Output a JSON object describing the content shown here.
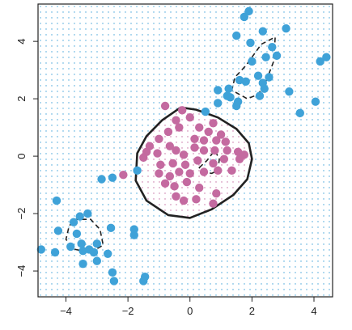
{
  "chart_data": {
    "type": "scatter",
    "title": "",
    "xlabel": "",
    "ylabel": "",
    "xlim": [
      -4.9,
      4.6
    ],
    "ylim": [
      -4.9,
      5.3
    ],
    "x_ticks": [
      -4,
      -2,
      0,
      2,
      4
    ],
    "y_ticks": [
      -4,
      -2,
      0,
      2,
      4
    ],
    "x_tick_labels": [
      "−4",
      "−2",
      "0",
      "2",
      "4"
    ],
    "y_tick_labels": [
      "−4",
      "−2",
      "0",
      "2",
      "4"
    ],
    "grid": "dotted background grid colored by predicted class",
    "colors": {
      "class_a": "#3fa2d8",
      "class_b": "#c46aa0",
      "boundary": "#222222"
    },
    "boundaries": {
      "solid": [
        [
          -0.9,
          1.25
        ],
        [
          -0.3,
          1.7
        ],
        [
          0.2,
          1.62
        ],
        [
          0.9,
          1.35
        ],
        [
          1.5,
          0.95
        ],
        [
          1.9,
          0.45
        ],
        [
          2.0,
          -0.1
        ],
        [
          1.85,
          -0.8
        ],
        [
          1.4,
          -1.35
        ],
        [
          0.7,
          -1.85
        ],
        [
          0.0,
          -2.15
        ],
        [
          -0.7,
          -2.05
        ],
        [
          -1.4,
          -1.55
        ],
        [
          -1.75,
          -0.85
        ],
        [
          -1.7,
          0.1
        ],
        [
          -1.4,
          0.7
        ],
        [
          -0.9,
          1.25
        ]
      ],
      "dashed": [
        [
          [
            2.3,
            3.9
          ],
          [
            2.75,
            4.15
          ],
          [
            2.7,
            3.3
          ],
          [
            2.45,
            2.6
          ],
          [
            2.2,
            2.15
          ],
          [
            1.85,
            2.0
          ],
          [
            1.35,
            2.3
          ],
          [
            1.45,
            2.75
          ],
          [
            1.8,
            3.15
          ],
          [
            2.3,
            3.9
          ]
        ],
        [
          [
            -3.75,
            -2.2
          ],
          [
            -3.2,
            -2.2
          ],
          [
            -2.9,
            -2.55
          ],
          [
            -2.8,
            -3.1
          ],
          [
            -3.2,
            -3.35
          ],
          [
            -3.7,
            -3.25
          ],
          [
            -4.0,
            -2.9
          ],
          [
            -3.9,
            -2.45
          ],
          [
            -3.75,
            -2.2
          ]
        ],
        [
          [
            0.3,
            -0.4
          ],
          [
            0.55,
            -0.15
          ],
          [
            0.8,
            0.2
          ],
          [
            0.95,
            -0.1
          ],
          [
            0.9,
            -0.5
          ],
          [
            0.7,
            -0.6
          ],
          [
            0.45,
            -0.55
          ],
          [
            0.3,
            -0.4
          ]
        ]
      ]
    },
    "series": [
      {
        "class": "a",
        "points": [
          [
            1.9,
            5.05
          ],
          [
            1.75,
            4.85
          ],
          [
            2.35,
            4.35
          ],
          [
            1.5,
            4.2
          ],
          [
            1.95,
            3.95
          ],
          [
            3.1,
            4.45
          ],
          [
            2.65,
            3.8
          ],
          [
            2.45,
            3.45
          ],
          [
            2.8,
            3.5
          ],
          [
            2.0,
            3.3
          ],
          [
            1.6,
            2.65
          ],
          [
            1.8,
            2.6
          ],
          [
            2.4,
            2.35
          ],
          [
            2.55,
            2.75
          ],
          [
            2.2,
            2.8
          ],
          [
            2.35,
            2.55
          ],
          [
            1.25,
            2.35
          ],
          [
            1.3,
            2.05
          ],
          [
            0.9,
            2.3
          ],
          [
            1.2,
            2.1
          ],
          [
            1.55,
            1.9
          ],
          [
            1.5,
            1.75
          ],
          [
            0.9,
            1.85
          ],
          [
            0.5,
            1.55
          ],
          [
            2.25,
            2.1
          ],
          [
            3.2,
            2.25
          ],
          [
            3.55,
            1.5
          ],
          [
            4.05,
            1.9
          ],
          [
            4.2,
            3.3
          ],
          [
            4.4,
            3.45
          ],
          [
            -1.7,
            -0.5
          ],
          [
            -2.5,
            -0.75
          ],
          [
            -2.85,
            -0.8
          ],
          [
            -4.3,
            -1.55
          ],
          [
            -3.3,
            -2.0
          ],
          [
            -3.55,
            -2.1
          ],
          [
            -3.75,
            -2.3
          ],
          [
            -4.25,
            -2.6
          ],
          [
            -3.65,
            -2.7
          ],
          [
            -3.85,
            -3.15
          ],
          [
            -3.5,
            -3.05
          ],
          [
            -3.45,
            -3.3
          ],
          [
            -3.0,
            -3.05
          ],
          [
            -3.1,
            -3.35
          ],
          [
            -3.25,
            -3.25
          ],
          [
            -4.35,
            -3.35
          ],
          [
            -4.8,
            -3.25
          ],
          [
            -2.65,
            -3.4
          ],
          [
            -3.0,
            -3.65
          ],
          [
            -3.45,
            -3.75
          ],
          [
            -2.55,
            -2.5
          ],
          [
            -1.8,
            -2.55
          ],
          [
            -1.8,
            -2.75
          ],
          [
            -2.5,
            -4.05
          ],
          [
            -2.45,
            -4.35
          ],
          [
            -1.45,
            -4.2
          ],
          [
            -1.5,
            -4.35
          ]
        ]
      },
      {
        "class": "b",
        "points": [
          [
            -0.8,
            1.75
          ],
          [
            -0.25,
            1.6
          ],
          [
            0.0,
            1.35
          ],
          [
            0.3,
            1.0
          ],
          [
            0.6,
            0.85
          ],
          [
            0.75,
            1.15
          ],
          [
            1.0,
            0.75
          ],
          [
            1.15,
            0.5
          ],
          [
            0.85,
            0.55
          ],
          [
            0.45,
            0.55
          ],
          [
            0.15,
            0.6
          ],
          [
            -0.35,
            1.0
          ],
          [
            -0.45,
            1.25
          ],
          [
            -0.7,
            0.85
          ],
          [
            -1.0,
            0.6
          ],
          [
            -1.3,
            0.35
          ],
          [
            -1.4,
            0.15
          ],
          [
            -1.5,
            -0.05
          ],
          [
            -1.05,
            0.1
          ],
          [
            -0.65,
            0.35
          ],
          [
            -0.45,
            0.2
          ],
          [
            -0.2,
            0.05
          ],
          [
            0.15,
            0.3
          ],
          [
            0.45,
            0.2
          ],
          [
            0.8,
            0.2
          ],
          [
            1.2,
            0.2
          ],
          [
            1.55,
            0.15
          ],
          [
            1.75,
            0.05
          ],
          [
            1.6,
            -0.1
          ],
          [
            1.1,
            -0.1
          ],
          [
            0.75,
            -0.25
          ],
          [
            0.25,
            -0.15
          ],
          [
            -0.15,
            -0.3
          ],
          [
            -0.55,
            -0.25
          ],
          [
            -0.95,
            -0.3
          ],
          [
            -0.35,
            -0.55
          ],
          [
            0.0,
            -0.6
          ],
          [
            0.45,
            -0.55
          ],
          [
            0.9,
            -0.5
          ],
          [
            1.35,
            -0.5
          ],
          [
            -1.0,
            -0.6
          ],
          [
            -0.65,
            -0.7
          ],
          [
            -0.8,
            -0.95
          ],
          [
            -0.5,
            -1.05
          ],
          [
            -0.1,
            -0.9
          ],
          [
            0.3,
            -1.1
          ],
          [
            -0.45,
            -1.4
          ],
          [
            -0.2,
            -1.55
          ],
          [
            0.2,
            -1.5
          ],
          [
            0.85,
            -1.3
          ],
          [
            0.75,
            -1.65
          ],
          [
            -2.15,
            -0.65
          ]
        ]
      }
    ]
  }
}
